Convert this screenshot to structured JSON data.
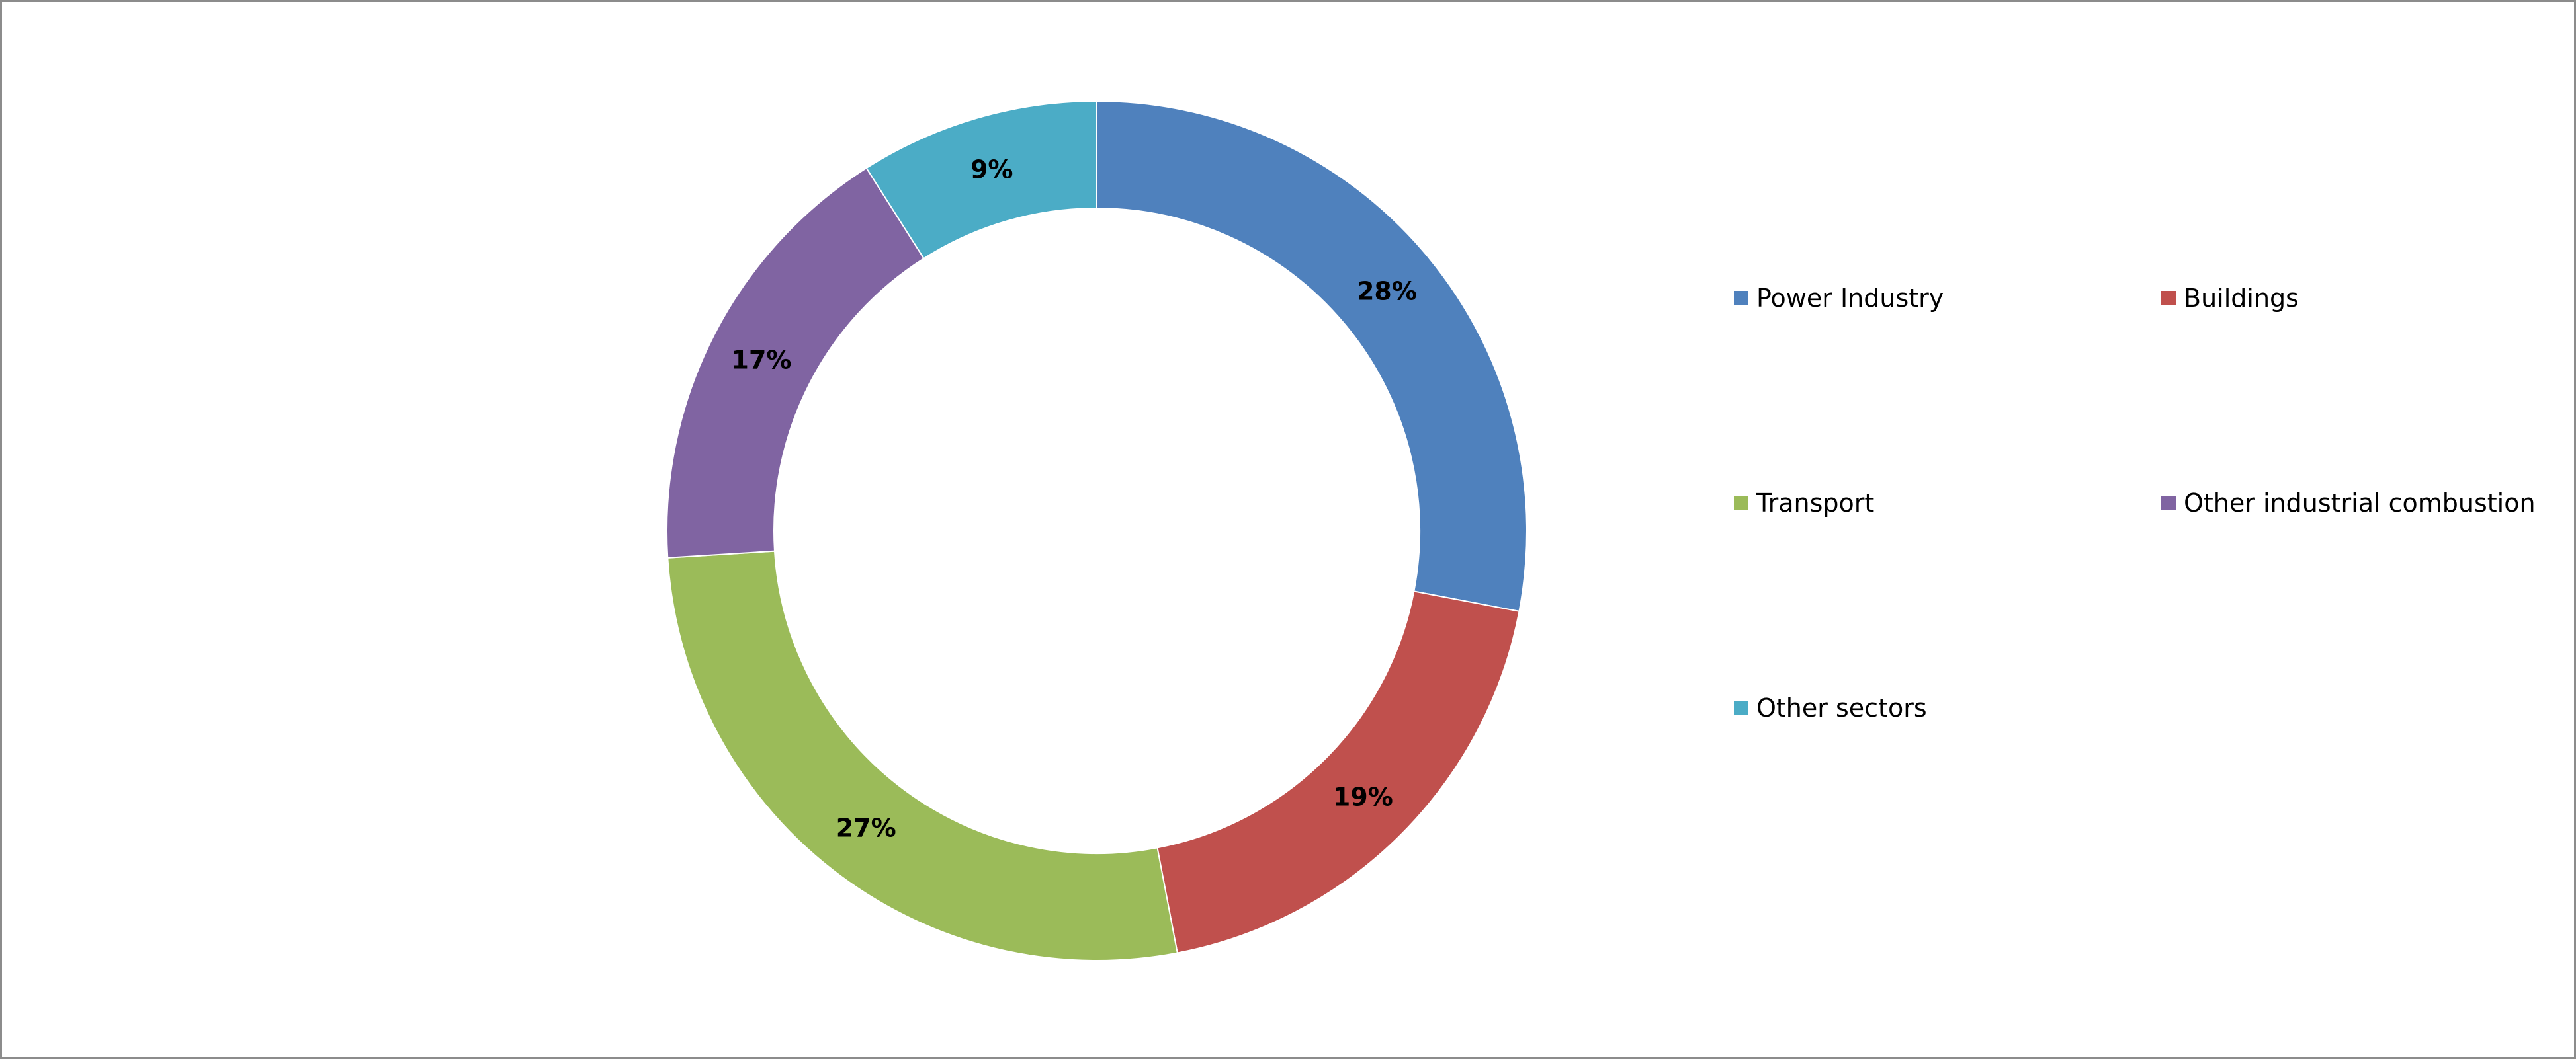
{
  "chart_data": {
    "type": "pie",
    "variant": "donut",
    "title": "",
    "categories": [
      "Power Industry",
      "Buildings",
      "Transport",
      "Other industrial combustion",
      "Other sectors"
    ],
    "values": [
      28,
      19,
      27,
      17,
      9
    ],
    "labels": [
      "28%",
      "19%",
      "27%",
      "17%",
      "9%"
    ],
    "colors": [
      "#4F81BD",
      "#C0504D",
      "#9BBB59",
      "#8064A2",
      "#4BACC6"
    ],
    "legend_position": "right",
    "legend_columns": 2
  }
}
